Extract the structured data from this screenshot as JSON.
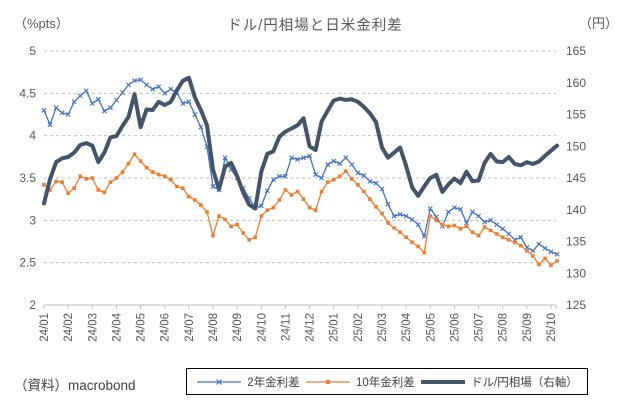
{
  "title": "ドル/円相場と日米金利差",
  "source": "（資料）macrobond",
  "left_axis": {
    "unit": "（%pts）",
    "min": 2,
    "max": 5,
    "tick_labels": [
      "5",
      "4.5",
      "4",
      "3.5",
      "3",
      "2.5",
      "2"
    ]
  },
  "right_axis": {
    "unit": "（円）",
    "min": 125,
    "max": 165,
    "tick_labels": [
      "165",
      "160",
      "155",
      "150",
      "145",
      "140",
      "135",
      "130",
      "125"
    ]
  },
  "x_axis": {
    "tick_labels": [
      "24/01",
      "24/02",
      "24/03",
      "24/04",
      "24/05",
      "24/06",
      "24/07",
      "24/08",
      "24/09",
      "24/10",
      "24/11",
      "24/12",
      "25/01",
      "25/02",
      "25/03",
      "25/04",
      "25/05",
      "25/06",
      "25/07",
      "25/08",
      "25/09",
      "25/10"
    ]
  },
  "legend": {
    "items": [
      {
        "label": "2年金利差",
        "marker": "x-cross",
        "color": "#4472C4"
      },
      {
        "label": "10年金利差",
        "marker": "square-dot",
        "color": "#ED7D31"
      },
      {
        "label": "ドル/円相場（右軸）",
        "marker": "thick-line",
        "color": "#44546A"
      }
    ]
  },
  "chart_data": {
    "type": "line",
    "title": "ドル/円相場と日米金利差",
    "x_unit": "months since 24/01, weekly points (step 0.25)",
    "x_start": 0,
    "x_step": 0.25,
    "x_tick_labels": [
      "24/01",
      "24/02",
      "24/03",
      "24/04",
      "24/05",
      "24/06",
      "24/07",
      "24/08",
      "24/09",
      "24/10",
      "24/11",
      "24/12",
      "25/01",
      "25/02",
      "25/03",
      "25/04",
      "25/05",
      "25/06",
      "25/07",
      "25/08",
      "25/09",
      "25/10"
    ],
    "left_ylim": [
      2,
      5
    ],
    "right_ylim": [
      125,
      165
    ],
    "grid": "horizontal-dashed",
    "legend_position": "bottom",
    "series": [
      {
        "name": "2年金利差",
        "axis": "left",
        "color": "#4472C4",
        "marker": "x",
        "values": [
          4.3,
          4.13,
          4.33,
          4.27,
          4.25,
          4.4,
          4.47,
          4.53,
          4.38,
          4.43,
          4.29,
          4.33,
          4.42,
          4.51,
          4.6,
          4.65,
          4.66,
          4.6,
          4.55,
          4.58,
          4.5,
          4.55,
          4.51,
          4.38,
          4.4,
          4.25,
          4.1,
          3.87,
          3.4,
          3.36,
          3.74,
          3.6,
          3.5,
          3.38,
          3.26,
          3.15,
          3.17,
          3.35,
          3.48,
          3.52,
          3.52,
          3.74,
          3.72,
          3.74,
          3.76,
          3.54,
          3.5,
          3.66,
          3.7,
          3.67,
          3.74,
          3.66,
          3.56,
          3.53,
          3.46,
          3.44,
          3.37,
          3.19,
          3.05,
          3.07,
          3.05,
          3.01,
          2.95,
          2.81,
          3.14,
          3.04,
          2.93,
          3.1,
          3.15,
          3.13,
          2.97,
          3.1,
          3.05,
          2.98,
          3.0,
          2.95,
          2.9,
          2.84,
          2.77,
          2.8,
          2.68,
          2.64,
          2.72,
          2.67,
          2.63,
          2.6
        ]
      },
      {
        "name": "10年金利差",
        "axis": "left",
        "color": "#ED7D31",
        "marker": "square",
        "values": [
          3.42,
          3.36,
          3.46,
          3.45,
          3.32,
          3.38,
          3.52,
          3.49,
          3.5,
          3.36,
          3.33,
          3.45,
          3.5,
          3.57,
          3.67,
          3.78,
          3.7,
          3.62,
          3.57,
          3.54,
          3.52,
          3.48,
          3.4,
          3.38,
          3.28,
          3.24,
          3.18,
          3.1,
          2.82,
          3.05,
          3.01,
          2.93,
          2.95,
          2.85,
          2.77,
          2.8,
          3.05,
          3.12,
          3.15,
          3.24,
          3.36,
          3.3,
          3.34,
          3.25,
          3.15,
          3.12,
          3.34,
          3.45,
          3.48,
          3.52,
          3.58,
          3.49,
          3.42,
          3.34,
          3.25,
          3.16,
          3.08,
          2.97,
          2.91,
          2.86,
          2.8,
          2.74,
          2.69,
          2.62,
          3.05,
          3.0,
          2.95,
          2.93,
          2.94,
          2.9,
          2.93,
          2.86,
          2.82,
          2.92,
          2.88,
          2.84,
          2.8,
          2.77,
          2.74,
          2.7,
          2.64,
          2.58,
          2.48,
          2.55,
          2.47,
          2.52
        ]
      },
      {
        "name": "ドル/円相場（右軸）",
        "axis": "right",
        "color": "#44546A",
        "marker": "none",
        "values": [
          141.0,
          144.8,
          147.5,
          148.1,
          148.3,
          149.0,
          150.2,
          150.5,
          150.1,
          147.5,
          149.0,
          151.4,
          151.6,
          153.2,
          154.6,
          158.2,
          153.0,
          155.8,
          155.7,
          157.0,
          156.5,
          157.0,
          158.8,
          160.3,
          160.8,
          157.7,
          155.7,
          153.3,
          146.3,
          143.2,
          146.8,
          147.4,
          145.3,
          142.7,
          140.8,
          140.2,
          146.0,
          148.8,
          149.2,
          151.5,
          152.3,
          152.8,
          153.3,
          154.4,
          150.0,
          149.4,
          153.9,
          155.6,
          157.2,
          157.5,
          157.3,
          157.4,
          157.0,
          156.2,
          155.2,
          153.8,
          149.8,
          148.2,
          149.0,
          149.8,
          146.9,
          143.5,
          142.2,
          143.7,
          145.0,
          145.5,
          142.8,
          144.0,
          144.9,
          144.2,
          146.0,
          144.5,
          144.6,
          147.4,
          148.8,
          147.6,
          147.5,
          148.3,
          147.2,
          147.0,
          147.5,
          147.2,
          147.6,
          148.5,
          149.3,
          150.1
        ]
      }
    ]
  },
  "colors": {
    "grid": "#BFBFBF",
    "axis_text": "#595959",
    "title_text": "#595959",
    "axis_line": "#BFBFBF"
  }
}
